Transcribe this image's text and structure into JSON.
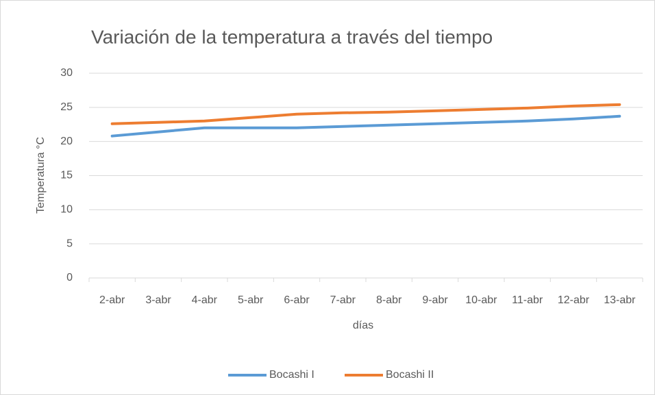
{
  "chart_data": {
    "type": "line",
    "title": "Variación de la temperatura a través del tiempo",
    "x_label": "días",
    "y_label": "Temperatura °C",
    "categories": [
      "2-abr",
      "3-abr",
      "4-abr",
      "5-abr",
      "6-abr",
      "7-abr",
      "8-abr",
      "9-abr",
      "10-abr",
      "11-abr",
      "12-abr",
      "13-abr"
    ],
    "series": [
      {
        "name": "Bocashi I",
        "color": "#5b9bd5",
        "values": [
          20.8,
          21.4,
          22.0,
          22.0,
          22.0,
          22.2,
          22.4,
          22.6,
          22.8,
          23.0,
          23.3,
          23.7
        ]
      },
      {
        "name": "Bocashi II",
        "color": "#ed7d31",
        "values": [
          22.6,
          22.8,
          23.0,
          23.5,
          24.0,
          24.2,
          24.3,
          24.5,
          24.7,
          24.9,
          25.2,
          25.4
        ]
      }
    ],
    "ylim": [
      0,
      30
    ],
    "yticks": [
      0,
      5,
      10,
      15,
      20,
      25,
      30
    ],
    "grid": true,
    "legend": "bottom"
  }
}
